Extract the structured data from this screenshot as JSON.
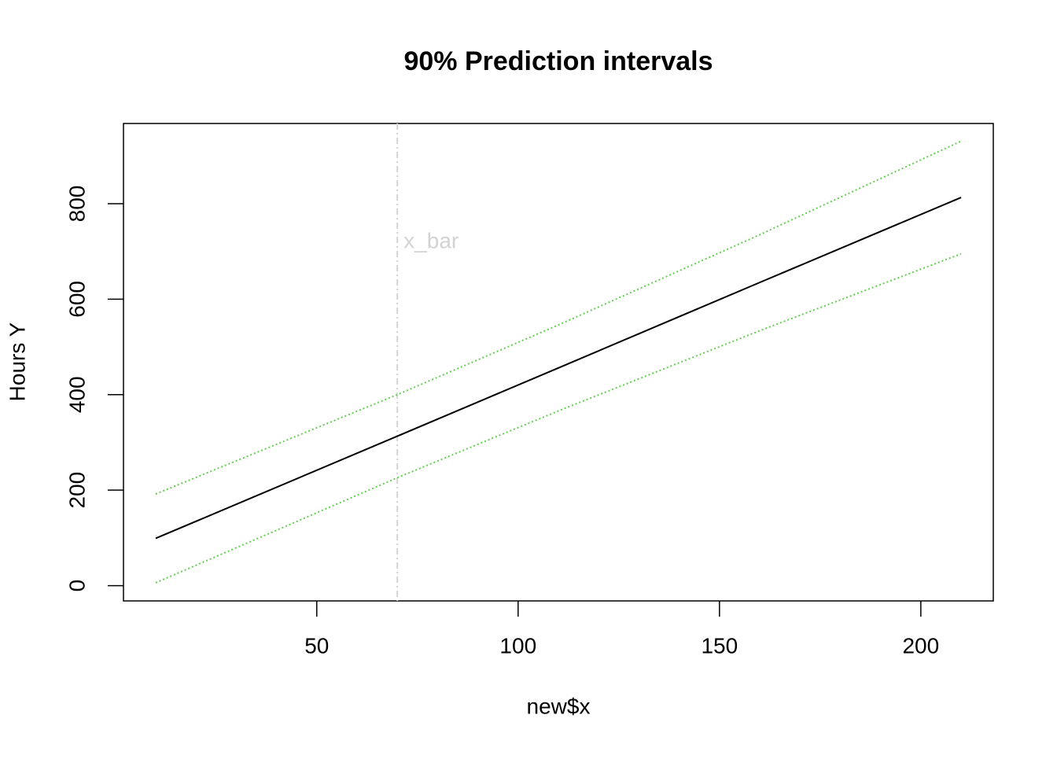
{
  "chart_data": {
    "type": "line",
    "title": "90% Prediction intervals",
    "x_label": "new$x",
    "y_label": "Hours Y",
    "x": [
      10,
      70,
      110,
      160,
      210
    ],
    "series": [
      {
        "color": "#000000",
        "dash": "solid",
        "values": [
          99,
          313,
          456,
          635,
          813
        ]
      },
      {
        "color": "#61d04f",
        "dash": "dotted",
        "values": [
          6,
          226,
          366,
          534,
          695
        ]
      },
      {
        "color": "#61d04f",
        "dash": "dotted",
        "values": [
          192,
          400,
          546,
          735,
          931
        ]
      }
    ],
    "vline": {
      "x": 70,
      "label": "x_bar",
      "color": "#d3d3d3"
    },
    "xlim": [
      2,
      218
    ],
    "xticks": [
      50,
      100,
      150,
      200
    ],
    "ylim": [
      -32,
      968
    ],
    "yticks": [
      0,
      200,
      400,
      600,
      800
    ],
    "grid": false
  }
}
